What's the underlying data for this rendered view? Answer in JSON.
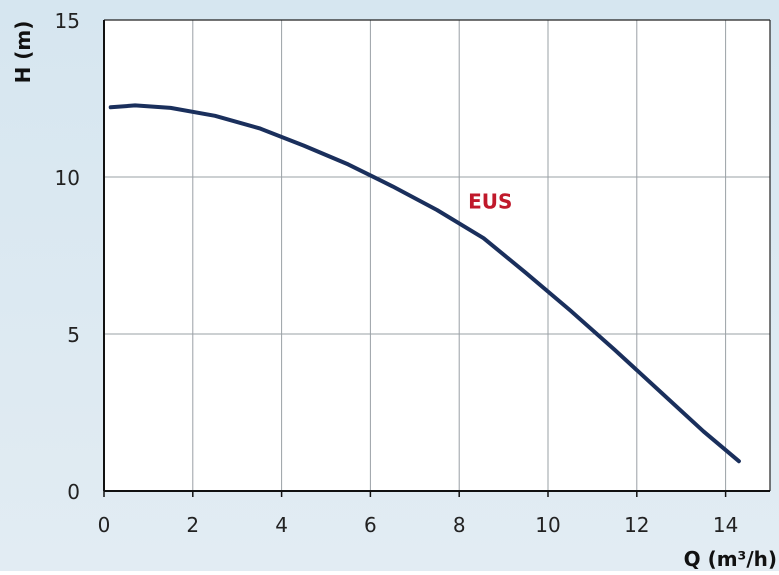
{
  "chart_data": {
    "type": "line",
    "title": "",
    "xlabel": "Q (m³/h)",
    "ylabel": "H (m)",
    "xlim": [
      0,
      15
    ],
    "ylim": [
      0,
      15
    ],
    "x_ticks": [
      "0",
      "2",
      "4",
      "6",
      "8",
      "10",
      "12",
      "14"
    ],
    "y_ticks": [
      "0",
      "5",
      "10",
      "15"
    ],
    "grid": true,
    "series": [
      {
        "name": "EUS",
        "color": "#1a2f5c",
        "points": [
          [
            0.15,
            12.22
          ],
          [
            0.7,
            12.28
          ],
          [
            1.5,
            12.2
          ],
          [
            2.5,
            11.95
          ],
          [
            3.5,
            11.55
          ],
          [
            4.5,
            11.0
          ],
          [
            5.5,
            10.4
          ],
          [
            6.5,
            9.7
          ],
          [
            7.5,
            8.95
          ],
          [
            8.55,
            8.05
          ],
          [
            9.5,
            6.95
          ],
          [
            10.5,
            5.75
          ],
          [
            11.5,
            4.5
          ],
          [
            12.5,
            3.2
          ],
          [
            13.5,
            1.9
          ],
          [
            14.3,
            0.95
          ]
        ]
      }
    ],
    "annotations": [
      {
        "text": "EUS",
        "x": 8.2,
        "y": 9.0,
        "color": "#c0192b"
      }
    ],
    "plot_background": "#ffffff",
    "page_background": "#dbe8f1",
    "grid_color": "#9aa0a6"
  }
}
